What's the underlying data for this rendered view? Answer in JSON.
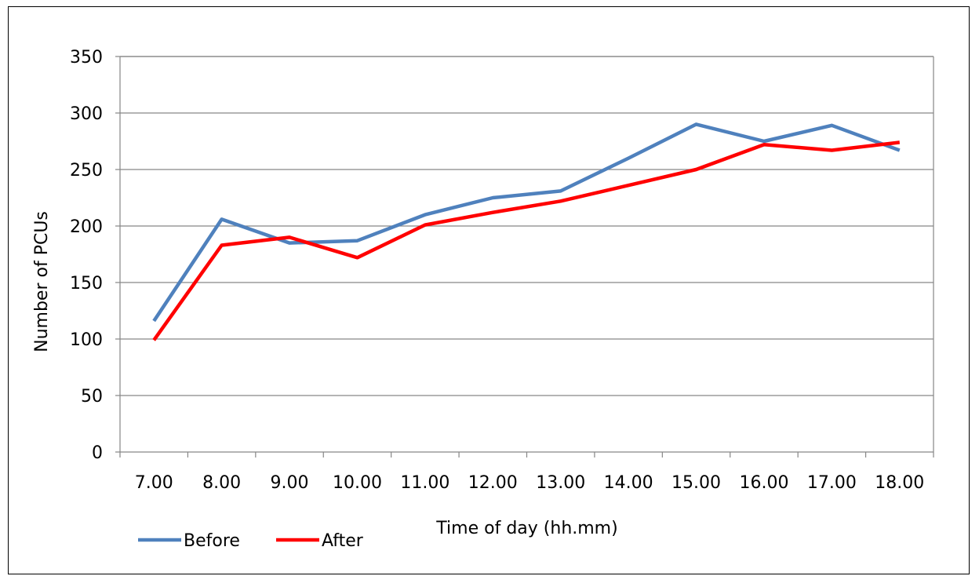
{
  "chart_data": {
    "type": "line",
    "title": "",
    "xlabel": "Time of day (hh.mm)",
    "ylabel": "Number of PCUs",
    "categories": [
      "7.00",
      "8.00",
      "9.00",
      "10.00",
      "11.00",
      "12.00",
      "13.00",
      "14.00",
      "15.00",
      "16.00",
      "17.00",
      "18.00"
    ],
    "ylim": [
      0,
      350
    ],
    "yticks": [
      "0",
      "50",
      "100",
      "150",
      "200",
      "250",
      "300",
      "350"
    ],
    "grid": "horizontal",
    "legend_position": "bottom-left",
    "series": [
      {
        "name": "Before",
        "color": "#4f81bd",
        "values": [
          116,
          206,
          185,
          187,
          210,
          225,
          231,
          260,
          290,
          275,
          289,
          267
        ]
      },
      {
        "name": "After",
        "color": "#ff0000",
        "values": [
          99,
          183,
          190,
          172,
          201,
          212,
          222,
          236,
          250,
          272,
          267,
          274
        ]
      }
    ]
  }
}
